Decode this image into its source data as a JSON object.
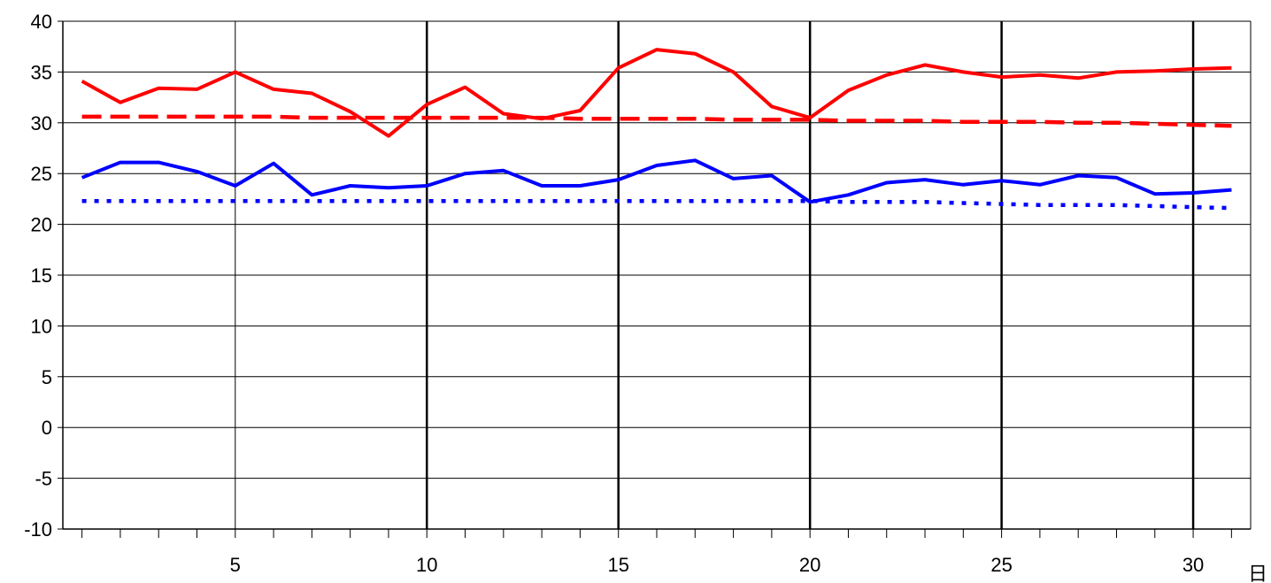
{
  "chart_data": {
    "type": "line",
    "title": "",
    "xlabel": "日",
    "ylabel": "",
    "xlim": [
      1,
      31
    ],
    "ylim": [
      -10,
      40
    ],
    "y_ticks": [
      40,
      35,
      30,
      25,
      20,
      15,
      10,
      5,
      0,
      -5,
      -10
    ],
    "x_tick_labels": [
      5,
      10,
      15,
      20,
      25,
      30
    ],
    "grid": {
      "horizontal": true,
      "vertical_minor_every": 5,
      "vertical_major_every": 5
    },
    "legend": "none",
    "x": [
      1,
      2,
      3,
      4,
      5,
      6,
      7,
      8,
      9,
      10,
      11,
      12,
      13,
      14,
      15,
      16,
      17,
      18,
      19,
      20,
      21,
      22,
      23,
      24,
      25,
      26,
      27,
      28,
      29,
      30,
      31
    ],
    "series": [
      {
        "color": "#ff0000",
        "style": "solid",
        "values": [
          34.1,
          32.0,
          33.4,
          33.3,
          35.0,
          33.3,
          32.9,
          31.1,
          28.7,
          31.8,
          33.5,
          30.9,
          30.4,
          31.2,
          35.4,
          37.2,
          36.8,
          35.0,
          31.6,
          30.5,
          33.2,
          34.7,
          35.7,
          35.0,
          34.5,
          34.7,
          34.4,
          35.0,
          35.1,
          35.3,
          35.4
        ]
      },
      {
        "color": "#ff0000",
        "style": "dashed",
        "values": [
          30.6,
          30.6,
          30.6,
          30.6,
          30.6,
          30.6,
          30.5,
          30.5,
          30.5,
          30.5,
          30.5,
          30.5,
          30.5,
          30.4,
          30.4,
          30.4,
          30.4,
          30.3,
          30.3,
          30.3,
          30.2,
          30.2,
          30.2,
          30.1,
          30.1,
          30.1,
          30.0,
          30.0,
          29.9,
          29.8,
          29.7
        ]
      },
      {
        "color": "#0000ff",
        "style": "solid",
        "values": [
          24.6,
          26.1,
          26.1,
          25.2,
          23.8,
          26.0,
          22.9,
          23.8,
          23.6,
          23.8,
          25.0,
          25.3,
          23.8,
          23.8,
          24.4,
          25.8,
          26.3,
          24.5,
          24.8,
          22.2,
          22.9,
          24.1,
          24.4,
          23.9,
          24.3,
          23.9,
          24.8,
          24.6,
          23.0,
          23.1,
          23.4
        ]
      },
      {
        "color": "#0000ff",
        "style": "dotted",
        "values": [
          22.3,
          22.3,
          22.3,
          22.3,
          22.3,
          22.3,
          22.3,
          22.3,
          22.3,
          22.3,
          22.3,
          22.3,
          22.3,
          22.3,
          22.3,
          22.3,
          22.3,
          22.3,
          22.3,
          22.3,
          22.2,
          22.2,
          22.2,
          22.1,
          22.0,
          21.9,
          21.9,
          21.9,
          21.8,
          21.7,
          21.6
        ]
      }
    ]
  }
}
